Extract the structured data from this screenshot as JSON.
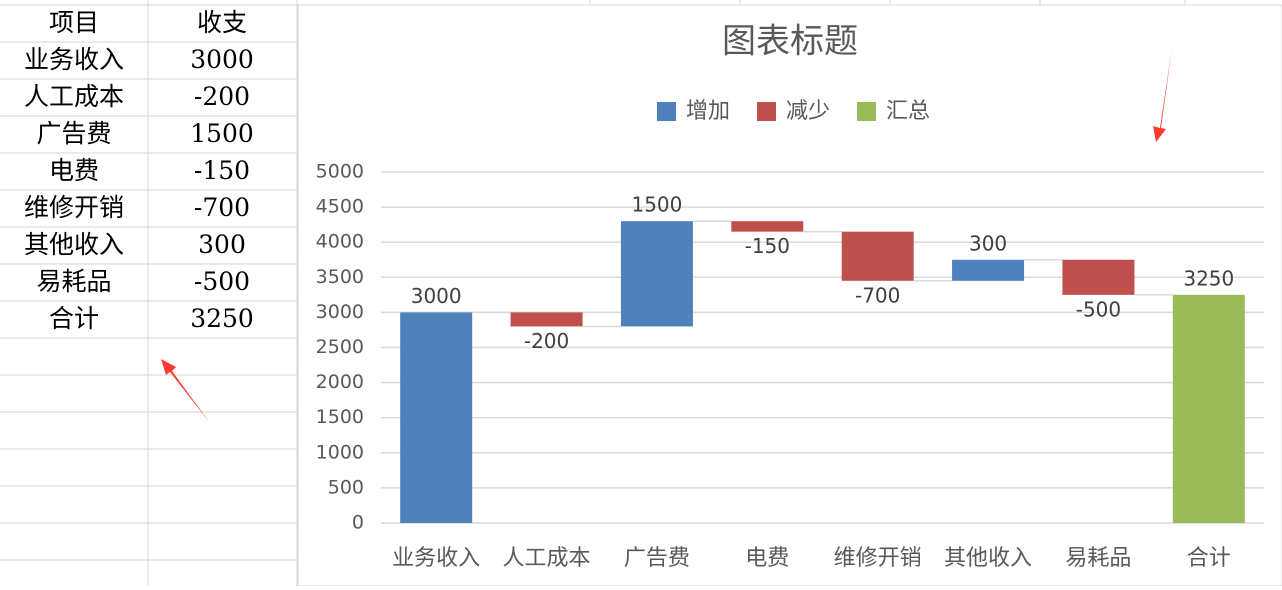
{
  "table": {
    "header": [
      "项目",
      "收支"
    ],
    "rows": [
      [
        "业务收入",
        3000
      ],
      [
        "人工成本",
        -200
      ],
      [
        "广告费",
        1500
      ],
      [
        "电费",
        -150
      ],
      [
        "维修开销",
        -700
      ],
      [
        "其他收入",
        300
      ],
      [
        "易耗品",
        -500
      ],
      [
        "合计",
        3250
      ]
    ]
  },
  "chart_data": {
    "type": "waterfall",
    "title": "图表标题",
    "categories": [
      "业务收入",
      "人工成本",
      "广告费",
      "电费",
      "维修开销",
      "其他收入",
      "易耗品",
      "合计"
    ],
    "series": [
      {
        "name": "增加",
        "color": "#4f81bd",
        "values": [
          3000,
          null,
          1500,
          null,
          null,
          300,
          null,
          null
        ]
      },
      {
        "name": "减少",
        "color": "#c0504d",
        "values": [
          null,
          -200,
          null,
          -150,
          -700,
          null,
          -500,
          null
        ]
      },
      {
        "name": "汇总",
        "color": "#9bbb59",
        "values": [
          null,
          null,
          null,
          null,
          null,
          null,
          null,
          3250
        ]
      }
    ],
    "ylim": [
      0,
      5000
    ],
    "yticks": [
      0,
      500,
      1000,
      1500,
      2000,
      2500,
      3000,
      3500,
      4000,
      4500,
      5000
    ],
    "grid": true,
    "legend": "top"
  }
}
